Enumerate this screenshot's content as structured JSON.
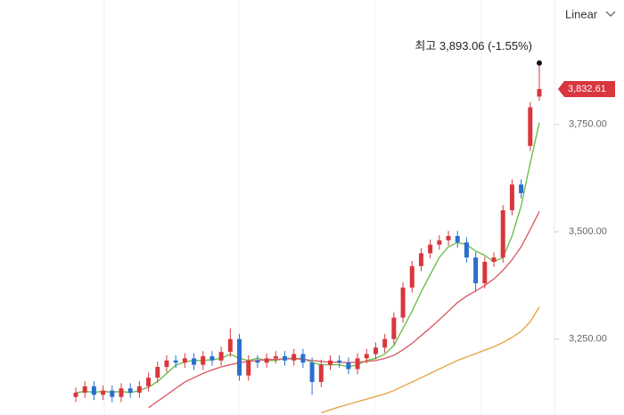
{
  "chart_data": {
    "type": "candlestick",
    "scale_label": "Linear",
    "annotation": "최고 3,893.06 (-1.55%)",
    "price_tag": {
      "value": 3832.61,
      "label": "3,832.61"
    },
    "up_color": "#d9363e",
    "down_color": "#2a6fd0",
    "ylim": [
      3073,
      4040
    ],
    "yticks": [
      {
        "value": 3250,
        "label": "3,250.00"
      },
      {
        "value": 3500,
        "label": "3,500.00"
      },
      {
        "value": 3750,
        "label": "3,750.00"
      }
    ],
    "open": [
      3115,
      3125,
      3140,
      3120,
      3130,
      3115,
      3135,
      3125,
      3140,
      3160,
      3185,
      3200,
      3195,
      3205,
      3190,
      3210,
      3200,
      3220,
      3250,
      3165,
      3200,
      3195,
      3205,
      3210,
      3200,
      3215,
      3195,
      3150,
      3190,
      3200,
      3195,
      3180,
      3205,
      3215,
      3230,
      3250,
      3300,
      3370,
      3420,
      3450,
      3470,
      3480,
      3490,
      3475,
      3440,
      3380,
      3430,
      3440,
      3550,
      3610,
      3700,
      3815
    ],
    "high": [
      3137,
      3152,
      3152,
      3142,
      3142,
      3147,
      3147,
      3152,
      3172,
      3197,
      3212,
      3212,
      3217,
      3217,
      3222,
      3222,
      3232,
      3275,
      3262,
      3212,
      3212,
      3217,
      3222,
      3222,
      3227,
      3227,
      3207,
      3202,
      3212,
      3212,
      3207,
      3217,
      3227,
      3242,
      3262,
      3312,
      3382,
      3432,
      3462,
      3482,
      3492,
      3502,
      3502,
      3487,
      3452,
      3442,
      3452,
      3562,
      3622,
      3622,
      3802,
      3893.06
    ],
    "low": [
      3103,
      3113,
      3108,
      3108,
      3103,
      3103,
      3113,
      3113,
      3128,
      3148,
      3173,
      3183,
      3183,
      3178,
      3178,
      3188,
      3188,
      3208,
      3153,
      3153,
      3183,
      3183,
      3193,
      3188,
      3188,
      3183,
      3120,
      3138,
      3178,
      3183,
      3168,
      3168,
      3193,
      3203,
      3218,
      3238,
      3288,
      3358,
      3408,
      3438,
      3458,
      3468,
      3463,
      3428,
      3360,
      3368,
      3418,
      3428,
      3538,
      3578,
      3688,
      3805
    ],
    "close": [
      3125,
      3140,
      3120,
      3130,
      3115,
      3135,
      3125,
      3140,
      3160,
      3185,
      3200,
      3195,
      3205,
      3190,
      3210,
      3200,
      3220,
      3250,
      3165,
      3200,
      3195,
      3205,
      3210,
      3200,
      3215,
      3195,
      3150,
      3190,
      3200,
      3195,
      3180,
      3205,
      3215,
      3230,
      3250,
      3300,
      3370,
      3420,
      3450,
      3470,
      3480,
      3490,
      3475,
      3440,
      3380,
      3430,
      3440,
      3550,
      3610,
      3590,
      3790,
      3832.61
    ],
    "moving_averages": [
      {
        "color": "#6cbf4f",
        "values": [
          3125,
          3128,
          3126,
          3128,
          3126,
          3128,
          3125,
          3130,
          3138,
          3151,
          3170,
          3189,
          3197,
          3200,
          3200,
          3202,
          3205,
          3215,
          3205,
          3200,
          3205,
          3200,
          3200,
          3205,
          3205,
          3205,
          3195,
          3190,
          3190,
          3190,
          3185,
          3190,
          3200,
          3205,
          3215,
          3235,
          3275,
          3315,
          3360,
          3400,
          3440,
          3465,
          3475,
          3470,
          3455,
          3445,
          3430,
          3440,
          3490,
          3560,
          3660,
          3754
        ]
      },
      {
        "color": "#d9606a",
        "values": [
          null,
          null,
          null,
          null,
          null,
          null,
          null,
          null,
          3090,
          3105,
          3120,
          3135,
          3150,
          3160,
          3170,
          3178,
          3185,
          3190,
          3195,
          3198,
          3200,
          3202,
          3203,
          3204,
          3204,
          3203,
          3200,
          3198,
          3196,
          3196,
          3195,
          3196,
          3198,
          3200,
          3205,
          3212,
          3225,
          3240,
          3258,
          3276,
          3295,
          3315,
          3335,
          3350,
          3362,
          3375,
          3390,
          3410,
          3435,
          3465,
          3505,
          3547
        ]
      },
      {
        "color": "#e8a54a",
        "values": [
          null,
          null,
          null,
          null,
          null,
          null,
          null,
          null,
          null,
          null,
          null,
          null,
          null,
          null,
          null,
          null,
          null,
          null,
          null,
          null,
          null,
          null,
          null,
          null,
          null,
          null,
          null,
          3078,
          3085,
          3092,
          3098,
          3104,
          3110,
          3116,
          3122,
          3130,
          3140,
          3150,
          3160,
          3170,
          3180,
          3190,
          3200,
          3208,
          3216,
          3224,
          3232,
          3242,
          3254,
          3268,
          3290,
          3325
        ]
      }
    ]
  }
}
